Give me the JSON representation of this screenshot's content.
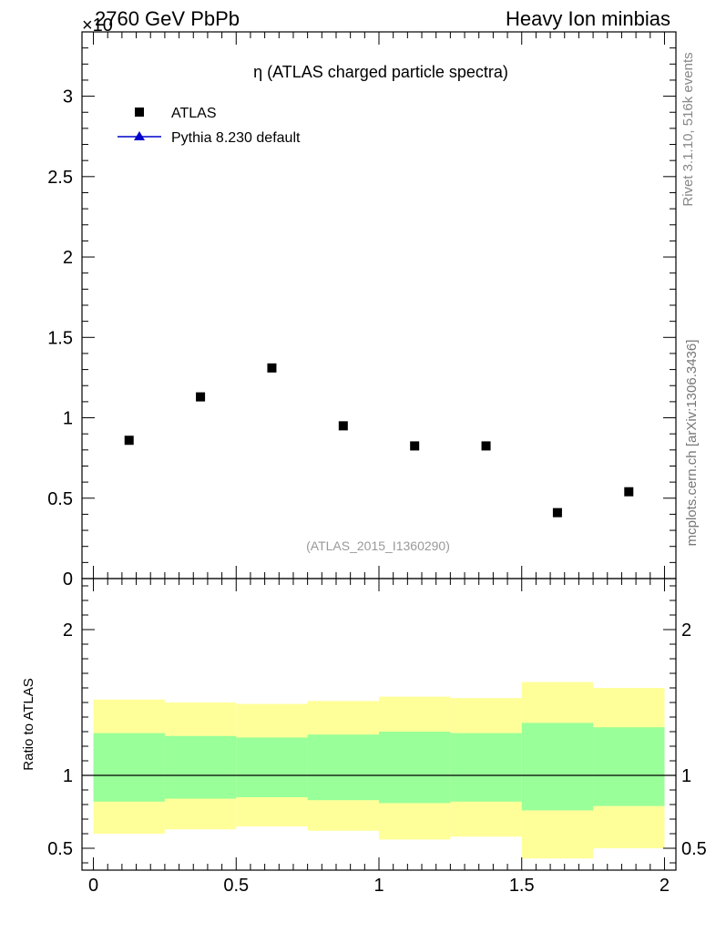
{
  "header": {
    "left_title": "2760 GeV PbPb",
    "right_title": "Heavy Ion minbias",
    "exponent_label": "×10"
  },
  "side_labels": {
    "rivet": "Rivet 3.1.10,  516k events",
    "mcplots": "mcplots.cern.ch [arXiv:1306.3436]"
  },
  "chart_data": [
    {
      "type": "scatter",
      "title": "η (ATLAS charged particle spectra)",
      "watermark": "(ATLAS_2015_I1360290)",
      "xlabel": "",
      "ylabel": "",
      "xlim": [
        -0.04,
        2.04
      ],
      "ylim": [
        0,
        3.4
      ],
      "y_scale_exponent": "×10",
      "y_ticks": [
        0,
        0.5,
        1,
        1.5,
        2,
        2.5,
        3
      ],
      "y_tick_labels": [
        "0",
        "0.5",
        "1",
        "1.5",
        "2",
        "2.5",
        "3"
      ],
      "legend": [
        {
          "name": "ATLAS",
          "marker": "square",
          "color": "#000000"
        },
        {
          "name": "Pythia 8.230 default",
          "marker": "triangle",
          "color": "#0000cc"
        }
      ],
      "legend_position": "top-left",
      "series": [
        {
          "name": "ATLAS",
          "x": [
            0.125,
            0.375,
            0.625,
            0.875,
            1.125,
            1.375,
            1.625,
            1.875
          ],
          "values": [
            0.86,
            1.13,
            1.31,
            0.95,
            0.825,
            0.825,
            0.41,
            0.54
          ]
        }
      ]
    },
    {
      "type": "area",
      "ylabel": "Ratio to ATLAS",
      "xlim": [
        -0.04,
        2.04
      ],
      "ylim": [
        0.35,
        2.35
      ],
      "x_ticks": [
        0,
        0.5,
        1,
        1.5,
        2
      ],
      "x_tick_labels": [
        "0",
        "0.5",
        "1",
        "1.5",
        "2"
      ],
      "y_ticks": [
        0.5,
        1,
        2
      ],
      "y_tick_labels": [
        "0.5",
        "1",
        "2"
      ],
      "reference_line": 1,
      "bins": [
        0,
        0.25,
        0.5,
        0.75,
        1.0,
        1.25,
        1.5,
        1.75,
        2.0
      ],
      "bands": [
        {
          "name": "total uncertainty",
          "color": "#ffff99",
          "low": [
            0.6,
            0.63,
            0.65,
            0.62,
            0.56,
            0.58,
            0.43,
            0.5
          ],
          "high": [
            1.52,
            1.5,
            1.49,
            1.51,
            1.54,
            1.53,
            1.64,
            1.6
          ]
        },
        {
          "name": "statistical uncertainty",
          "color": "#99ff99",
          "low": [
            0.82,
            0.84,
            0.85,
            0.83,
            0.81,
            0.82,
            0.76,
            0.79
          ],
          "high": [
            1.29,
            1.27,
            1.26,
            1.28,
            1.3,
            1.29,
            1.36,
            1.33
          ]
        }
      ]
    }
  ]
}
